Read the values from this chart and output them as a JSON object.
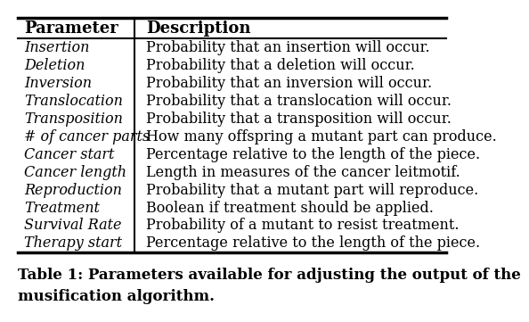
{
  "headers": [
    "Parameter",
    "Description"
  ],
  "rows": [
    [
      "Insertion",
      "Probability that an insertion will occur."
    ],
    [
      "Deletion",
      "Probability that a deletion will occur."
    ],
    [
      "Inversion",
      "Probability that an inversion will occur."
    ],
    [
      "Translocation",
      "Probability that a translocation will occur."
    ],
    [
      "Transposition",
      "Probability that a transposition will occur."
    ],
    [
      "# of cancer parts",
      "How many offspring a mutant part can produce."
    ],
    [
      "Cancer start",
      "Percentage relative to the length of the piece."
    ],
    [
      "Cancer length",
      "Length in measures of the cancer leitmotif."
    ],
    [
      "Reproduction",
      "Probability that a mutant part will reproduce."
    ],
    [
      "Treatment",
      "Boolean if treatment should be applied."
    ],
    [
      "Survival Rate",
      "Probability of a mutant to resist treatment."
    ],
    [
      "Therapy start",
      "Percentage relative to the length of the piece."
    ]
  ],
  "caption_line1": "Table 1: Parameters available for adjusting the output of the",
  "caption_line2": "musification algorithm.",
  "bg_color": "#ffffff",
  "text_color": "#000000",
  "col_split": 0.285,
  "header_fontsize": 13,
  "row_fontsize": 11.5,
  "caption_fontsize": 12
}
